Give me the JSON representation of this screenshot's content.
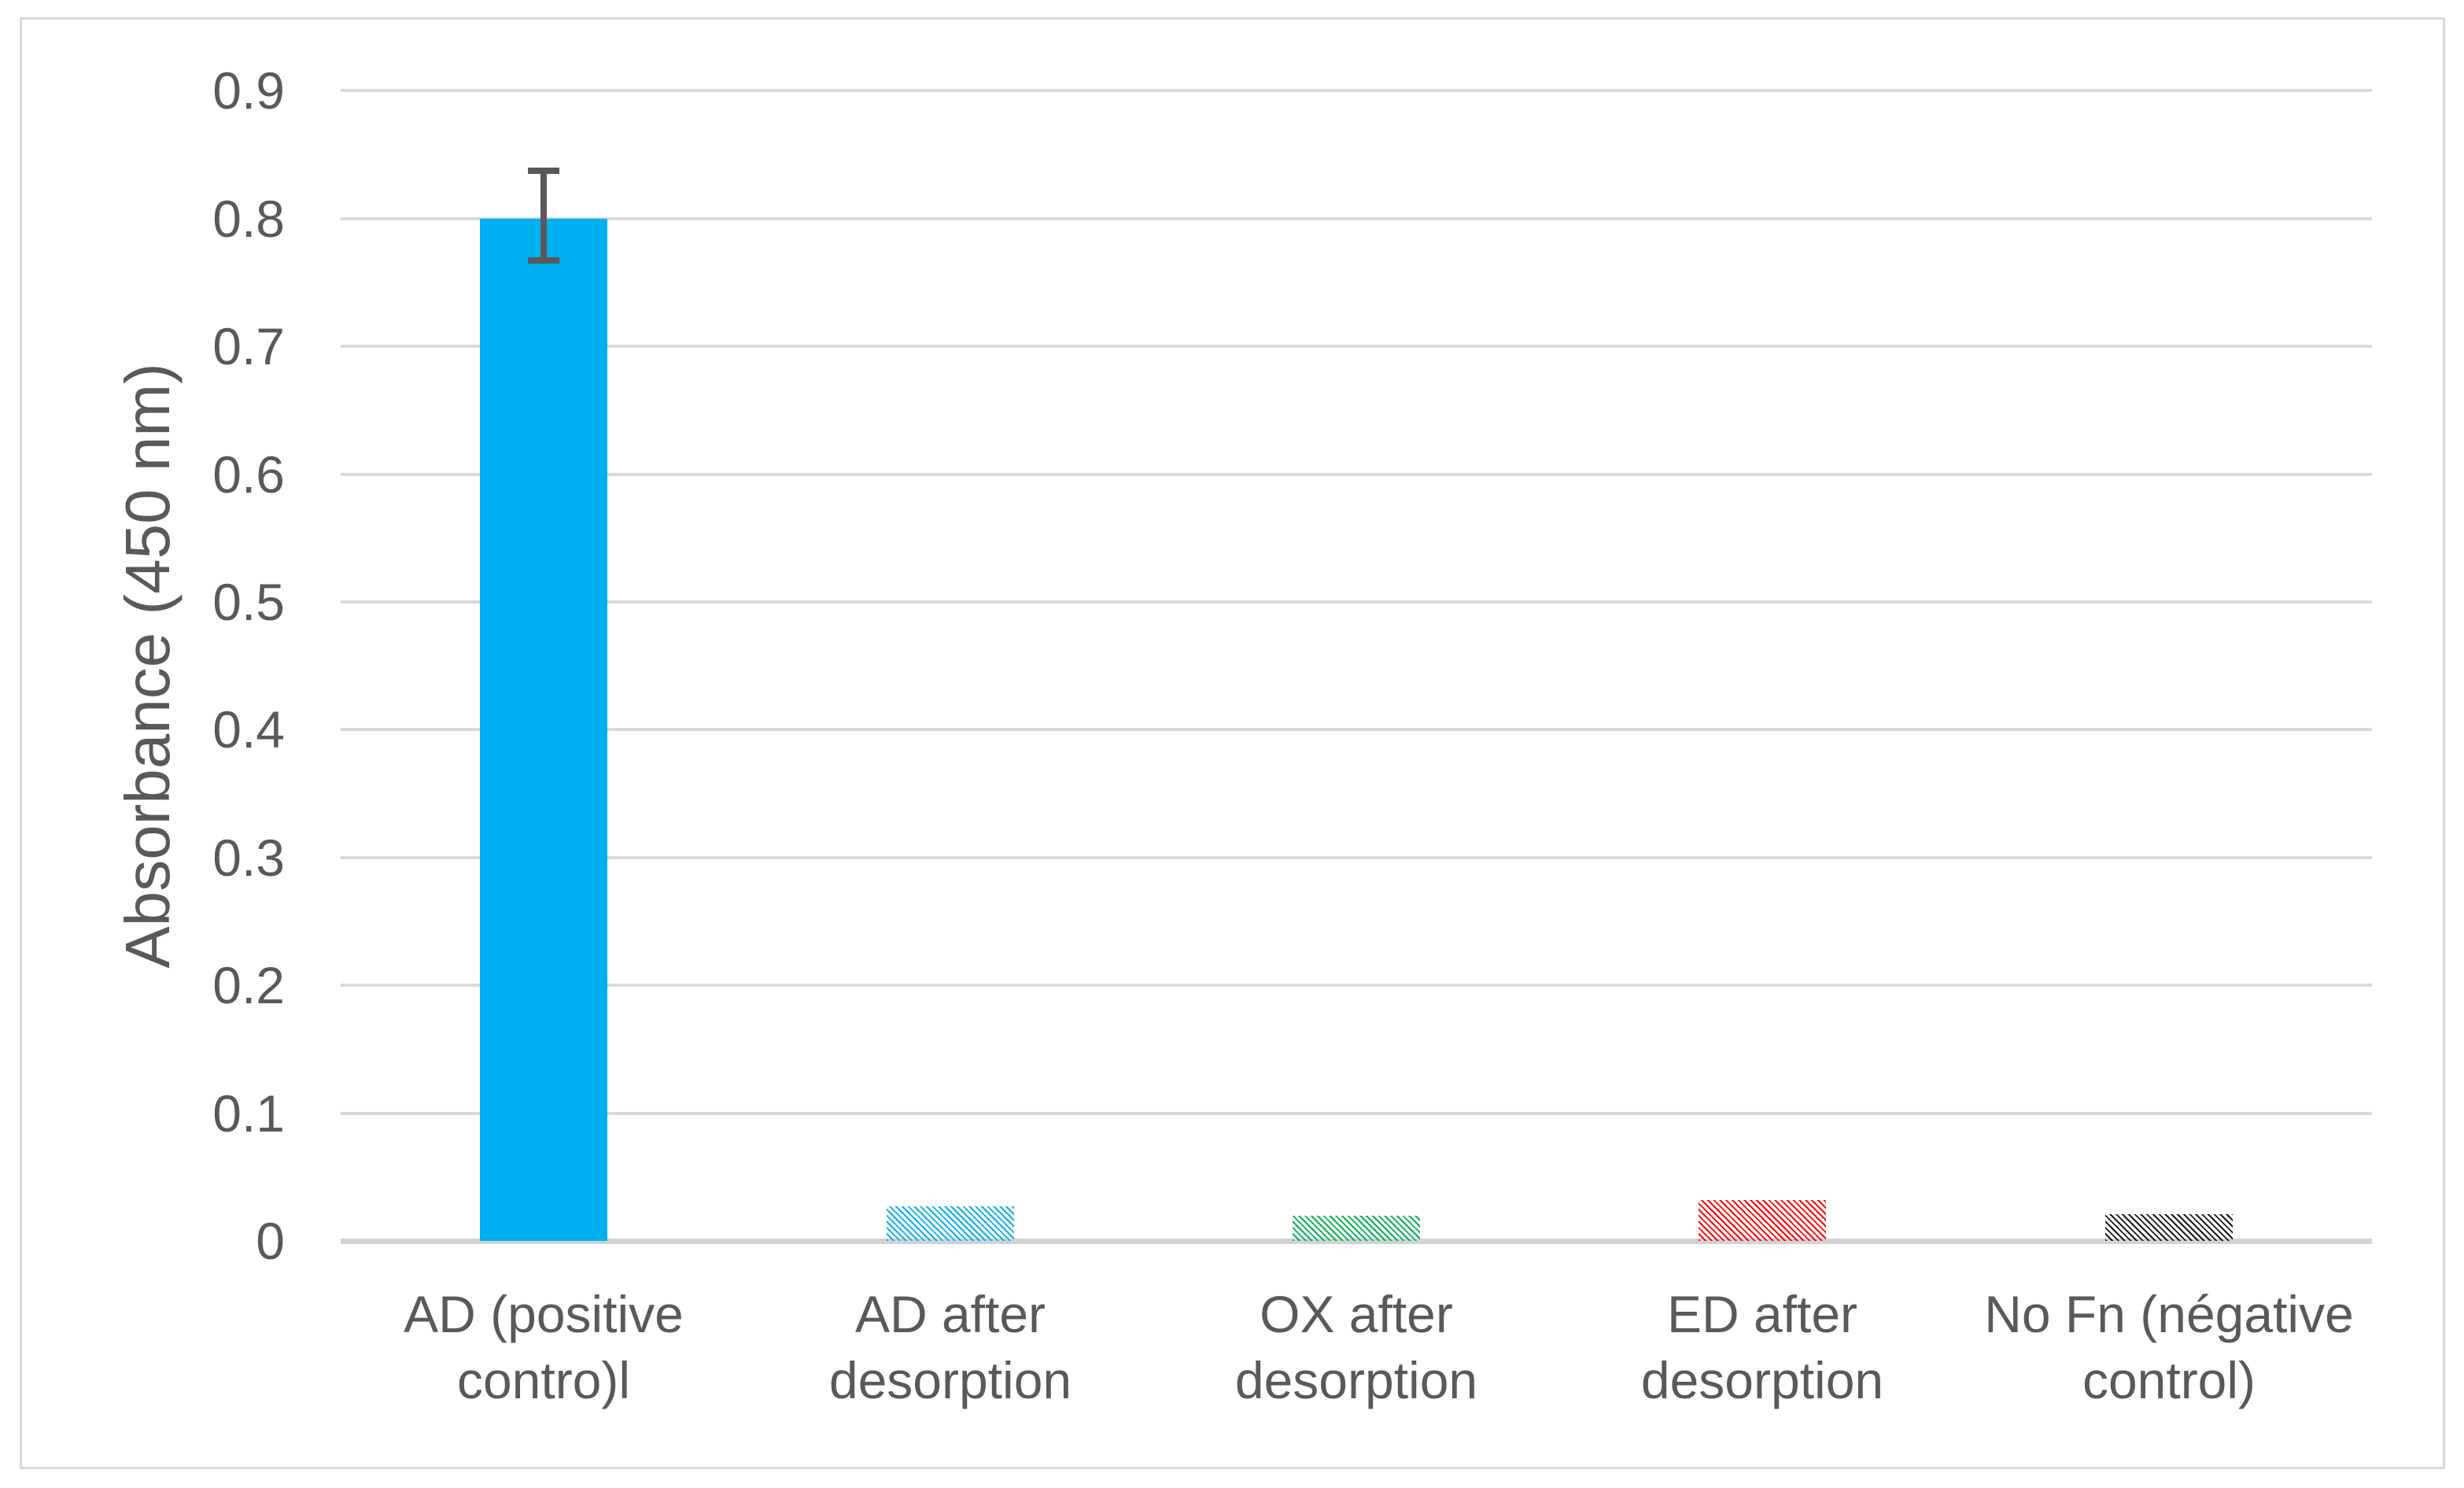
{
  "figure": {
    "background": "#FFFFFF",
    "border_color": "#D9D9D9"
  },
  "chart_data": {
    "type": "bar",
    "title": "",
    "xlabel": "",
    "ylabel": "Absorbance (450 nm)",
    "ylim": [
      0,
      0.9
    ],
    "yticks": [
      "0",
      "0.1",
      "0.2",
      "0.3",
      "0.4",
      "0.5",
      "0.6",
      "0.7",
      "0.8",
      "0.9"
    ],
    "grid": "horizontal gridlines, light gray",
    "legend": "none",
    "gridline_color": "#D9D9D9",
    "axis_text_color": "#595959",
    "error_bar_color": "#595959",
    "categories": [
      "AD (positive\ncontro)l",
      "AD after\ndesorption",
      "OX after\ndesorption",
      "ED after\ndesorption",
      "No Fn (négative\ncontrol)"
    ],
    "bars": [
      {
        "category": "AD (positive contro)l",
        "value": 0.8,
        "fill_style": "solid",
        "color": "#00B0F0",
        "error_plus": 0.04,
        "error_minus": 0.035
      },
      {
        "category": "AD after desorption",
        "value": 0.027,
        "fill_style": "diagonal-hatch",
        "color": "#00B0F0"
      },
      {
        "category": "OX after desorption",
        "value": 0.02,
        "fill_style": "diagonal-hatch",
        "color": "#00B050"
      },
      {
        "category": "ED after desorption",
        "value": 0.032,
        "fill_style": "diagonal-hatch",
        "color": "#FF0000"
      },
      {
        "category": "No Fn (négative control)",
        "value": 0.021,
        "fill_style": "diagonal-hatch",
        "color": "#1A1A1A"
      }
    ]
  }
}
